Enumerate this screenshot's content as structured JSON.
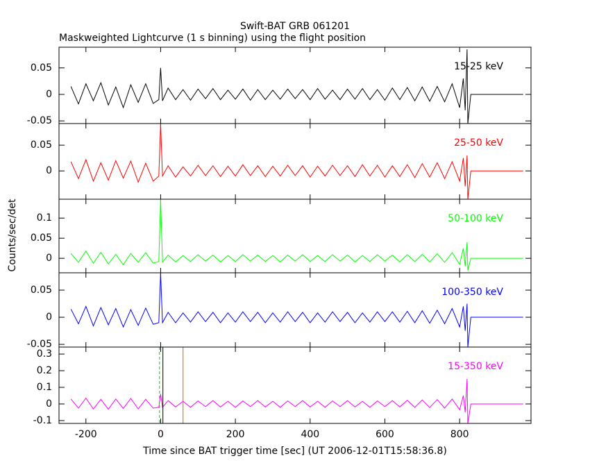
{
  "chart_data": {
    "type": "line",
    "title": "Swift-BAT GRB 061201",
    "subtitle": "Maskweighted Lightcurve (1 s binning) using the flight position",
    "x_label": "Time since BAT trigger time [sec] (UT 2006-12-01T15:58:36.8)",
    "y_label": "Counts/sec/det",
    "xlim": [
      -272,
      991
    ],
    "xticks": [
      -200,
      0,
      200,
      400,
      600,
      800
    ],
    "x": [
      -240,
      -220,
      -200,
      -180,
      -160,
      -140,
      -120,
      -100,
      -80,
      -60,
      -40,
      -20,
      -5,
      0,
      5,
      20,
      40,
      60,
      80,
      100,
      120,
      140,
      160,
      180,
      200,
      220,
      240,
      260,
      280,
      300,
      320,
      340,
      360,
      380,
      400,
      420,
      440,
      460,
      480,
      500,
      520,
      540,
      560,
      580,
      600,
      620,
      640,
      660,
      680,
      700,
      720,
      740,
      760,
      780,
      800,
      810,
      815,
      820,
      822,
      830,
      970
    ],
    "panels": [
      {
        "name": "15-25 keV",
        "color": "#000000",
        "ylim": [
          -0.055,
          0.089
        ],
        "yticks": [
          -0.05,
          0,
          0.05
        ],
        "values": [
          0.015,
          -0.018,
          0.02,
          -0.012,
          0.022,
          -0.02,
          0.014,
          -0.025,
          0.018,
          -0.015,
          0.02,
          -0.017,
          -0.01,
          0.05,
          -0.012,
          0.012,
          -0.01,
          0.009,
          -0.011,
          0.01,
          -0.008,
          0.011,
          -0.01,
          0.008,
          -0.009,
          0.01,
          -0.011,
          0.009,
          -0.01,
          0.008,
          -0.009,
          0.01,
          -0.008,
          0.009,
          -0.01,
          0.011,
          -0.009,
          0.008,
          -0.01,
          0.01,
          -0.009,
          0.011,
          -0.01,
          0.009,
          -0.011,
          0.012,
          -0.01,
          0.013,
          -0.012,
          0.014,
          -0.013,
          0.015,
          -0.014,
          0.02,
          -0.025,
          0.03,
          -0.03,
          0.085,
          -0.055,
          0,
          0
        ]
      },
      {
        "name": "25-50 keV",
        "color": "#ff0000",
        "ylim": [
          -0.055,
          0.092
        ],
        "yticks": [
          0,
          0.05
        ],
        "values": [
          0.018,
          -0.015,
          0.022,
          -0.02,
          0.016,
          -0.018,
          0.02,
          -0.014,
          0.019,
          -0.022,
          0.015,
          -0.02,
          -0.01,
          0.092,
          -0.01,
          0.01,
          -0.012,
          0.008,
          -0.01,
          0.011,
          -0.009,
          0.01,
          -0.011,
          0.009,
          -0.01,
          0.012,
          -0.009,
          0.01,
          -0.011,
          0.009,
          -0.01,
          0.011,
          -0.009,
          0.01,
          -0.012,
          0.009,
          -0.01,
          0.011,
          -0.009,
          0.01,
          -0.011,
          0.012,
          -0.01,
          0.011,
          -0.012,
          0.01,
          -0.011,
          0.012,
          -0.013,
          0.014,
          -0.012,
          0.016,
          -0.015,
          0.018,
          -0.02,
          0.025,
          -0.03,
          0.03,
          -0.055,
          0,
          0
        ]
      },
      {
        "name": "50-100 keV",
        "color": "#00ff00",
        "ylim": [
          -0.036,
          0.147
        ],
        "yticks": [
          0,
          0.05,
          0.1
        ],
        "values": [
          0.012,
          -0.01,
          0.018,
          -0.012,
          0.015,
          -0.014,
          0.01,
          -0.016,
          0.012,
          -0.01,
          0.014,
          -0.012,
          -0.008,
          0.147,
          -0.01,
          0.008,
          -0.009,
          0.007,
          -0.008,
          0.009,
          -0.007,
          0.008,
          -0.009,
          0.007,
          -0.008,
          0.009,
          -0.007,
          0.008,
          -0.008,
          0.007,
          -0.009,
          0.008,
          -0.007,
          0.009,
          -0.008,
          0.007,
          -0.008,
          0.009,
          -0.007,
          0.008,
          -0.009,
          0.007,
          -0.008,
          0.009,
          -0.007,
          0.008,
          -0.009,
          0.009,
          -0.008,
          0.01,
          -0.009,
          0.011,
          -0.01,
          0.014,
          -0.015,
          0.025,
          -0.02,
          0.04,
          -0.03,
          0,
          0
        ]
      },
      {
        "name": "100-350 keV",
        "color": "#0000ff",
        "ylim": [
          -0.055,
          0.082
        ],
        "yticks": [
          -0.05,
          0,
          0.05
        ],
        "values": [
          0.015,
          -0.012,
          0.02,
          -0.016,
          0.018,
          -0.014,
          0.016,
          -0.018,
          0.014,
          -0.015,
          0.017,
          -0.013,
          -0.01,
          0.082,
          -0.01,
          0.009,
          -0.01,
          0.008,
          -0.009,
          0.01,
          -0.008,
          0.009,
          -0.01,
          0.008,
          -0.009,
          0.01,
          -0.008,
          0.009,
          -0.01,
          0.008,
          -0.009,
          0.01,
          -0.008,
          0.009,
          -0.01,
          0.008,
          -0.009,
          0.01,
          -0.008,
          0.009,
          -0.01,
          0.008,
          -0.009,
          0.01,
          -0.008,
          0.01,
          -0.009,
          0.011,
          -0.01,
          0.012,
          -0.011,
          0.013,
          -0.012,
          0.016,
          -0.018,
          0.02,
          -0.025,
          0.025,
          -0.055,
          0,
          0
        ]
      },
      {
        "name": "15-350 keV",
        "color": "#ff00ff",
        "ylim": [
          -0.117,
          0.342
        ],
        "yticks": [
          -0.1,
          0,
          0.1,
          0.2,
          0.3
        ],
        "values": [
          0.03,
          -0.025,
          0.035,
          -0.03,
          0.028,
          -0.032,
          0.03,
          -0.027,
          0.033,
          -0.03,
          0.028,
          -0.025,
          -0.02,
          0.06,
          -0.02,
          0.02,
          -0.018,
          0.016,
          -0.02,
          0.018,
          -0.016,
          0.02,
          -0.018,
          0.016,
          -0.02,
          0.018,
          -0.016,
          0.02,
          -0.018,
          0.016,
          -0.02,
          0.018,
          -0.016,
          0.02,
          -0.018,
          0.016,
          -0.02,
          0.018,
          -0.016,
          0.02,
          -0.018,
          0.016,
          -0.02,
          0.018,
          -0.016,
          0.02,
          -0.018,
          0.022,
          -0.02,
          0.024,
          -0.022,
          0.026,
          -0.025,
          0.03,
          -0.035,
          0.05,
          -0.05,
          0.15,
          -0.117,
          0,
          0
        ],
        "markers": [
          {
            "x": -3,
            "color": "#00cc00",
            "dash": true
          },
          {
            "x": 6,
            "color": "#000000",
            "dash": false
          },
          {
            "x": 60,
            "color": "#cc6600",
            "dash": false
          }
        ]
      }
    ]
  }
}
